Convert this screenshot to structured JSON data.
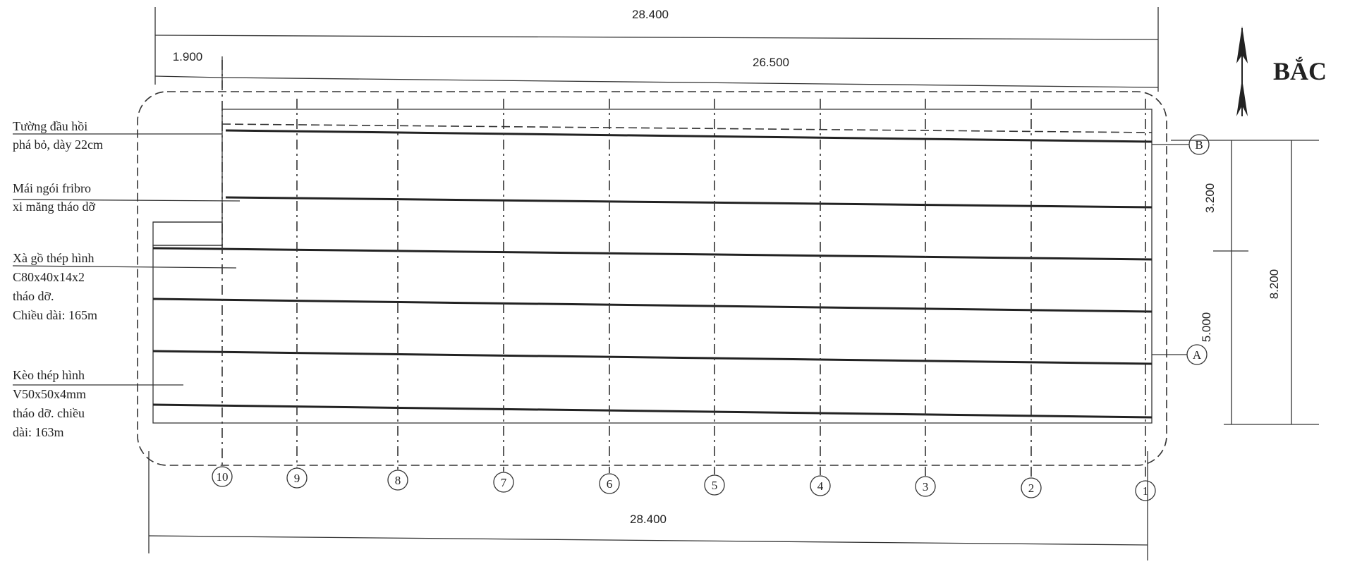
{
  "dimensions": {
    "top_total": "28.400",
    "left_offset": "1.900",
    "top_span": "26.500",
    "bottom_total": "28.400",
    "right_upper": "3.200",
    "right_lower": "5.000",
    "right_total": "8.200"
  },
  "north": "BẮC",
  "axes_numbered": [
    "10",
    "9",
    "8",
    "7",
    "6",
    "5",
    "4",
    "3",
    "2",
    "1"
  ],
  "axes_lettered": [
    "B",
    "A"
  ],
  "notes": [
    {
      "lines": [
        "Tường đầu hồi",
        "phá bỏ, dày 22cm"
      ]
    },
    {
      "lines": [
        "Mái ngói fribro",
        "xi măng tháo dỡ"
      ]
    },
    {
      "lines": [
        "Xà gồ thép hình",
        "C80x40x14x2",
        "tháo dỡ.",
        "Chiều dài: 165m"
      ]
    },
    {
      "lines": [
        "Kèo thép hình",
        "V50x50x4mm",
        "tháo dỡ. chiều",
        "dài: 163m"
      ]
    }
  ]
}
